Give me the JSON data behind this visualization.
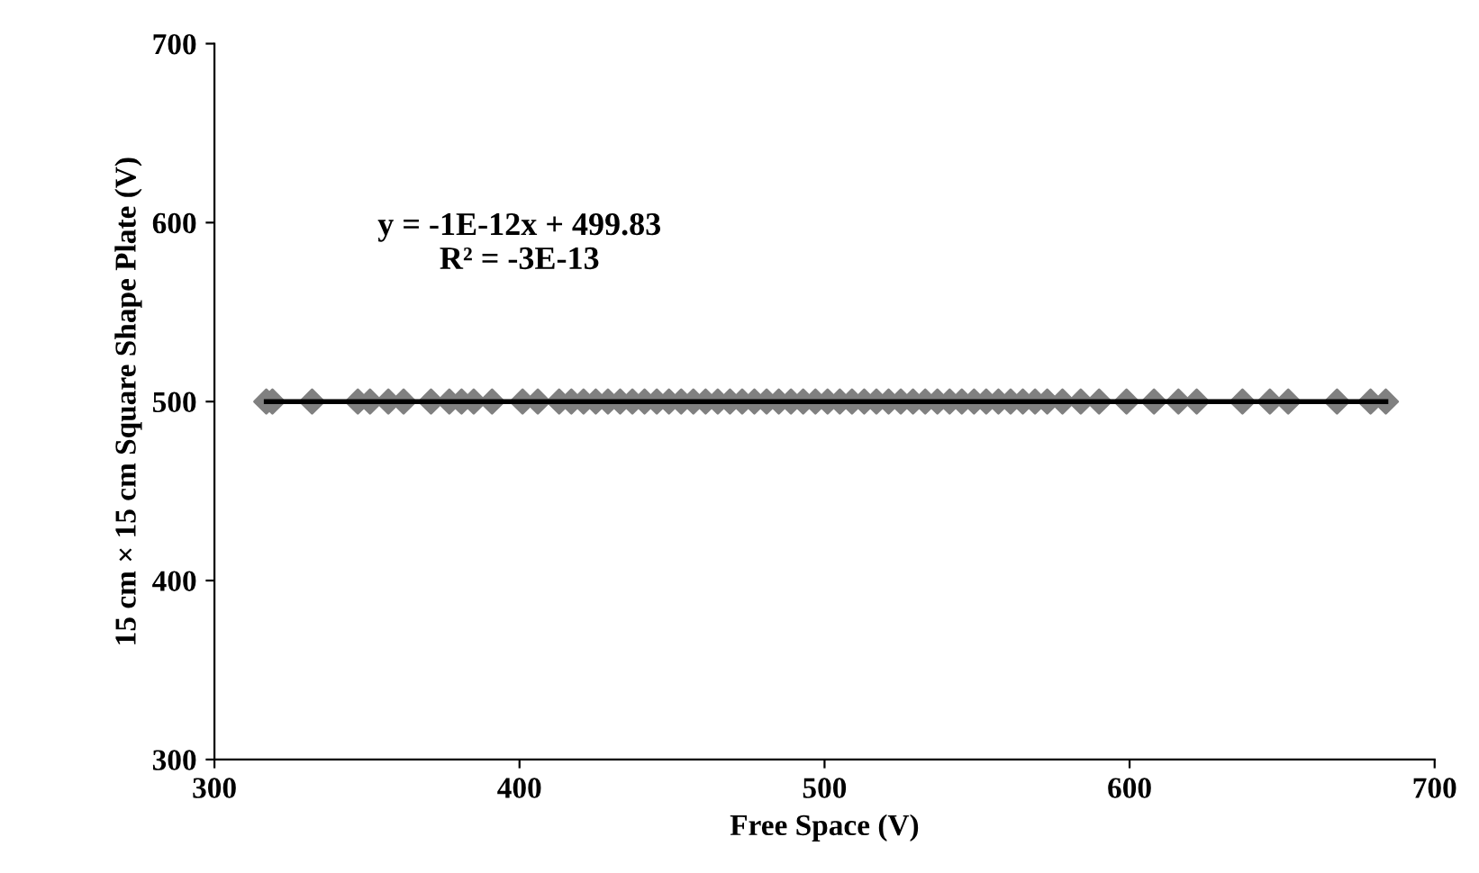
{
  "chart_data": {
    "type": "scatter",
    "xlabel": "Free Space (V)",
    "ylabel": "15 cm × 15 cm Square Shape Plate (V)",
    "xlim": [
      300,
      700
    ],
    "xticks": [
      300,
      400,
      500,
      600,
      700
    ],
    "ylim": [
      300,
      700
    ],
    "yticks": [
      300,
      400,
      500,
      600,
      700
    ],
    "grid": false,
    "annotations": [
      "y = -1E-12x + 499.83\nR² = -3E-13"
    ],
    "series": [
      {
        "marker": "diamond",
        "color": "#808080",
        "x": [
          317,
          319,
          332,
          347,
          351,
          357,
          362,
          371,
          377,
          381,
          385,
          391,
          401,
          406,
          413,
          417,
          421,
          425,
          429,
          433,
          437,
          441,
          445,
          449,
          453,
          457,
          461,
          465,
          469,
          473,
          477,
          481,
          485,
          489,
          493,
          497,
          501,
          505,
          509,
          513,
          517,
          521,
          525,
          529,
          533,
          537,
          541,
          545,
          549,
          553,
          557,
          561,
          565,
          569,
          573,
          578,
          584,
          590,
          599,
          608,
          616,
          622,
          637,
          646,
          652,
          668,
          679,
          684
        ],
        "values": [
          500,
          500,
          500,
          500,
          500,
          500,
          500,
          500,
          500,
          500,
          500,
          500,
          500,
          500,
          500,
          500,
          500,
          500,
          500,
          500,
          500,
          500,
          500,
          500,
          500,
          500,
          500,
          500,
          500,
          500,
          500,
          500,
          500,
          500,
          500,
          500,
          500,
          500,
          500,
          500,
          500,
          500,
          500,
          500,
          500,
          500,
          500,
          500,
          500,
          500,
          500,
          500,
          500,
          500,
          500,
          500,
          500,
          500,
          500,
          500,
          500,
          500,
          500,
          500,
          500,
          500,
          500,
          500
        ]
      },
      {
        "type": "line",
        "color": "#000000",
        "x": [
          317,
          684
        ],
        "values": [
          500,
          500
        ]
      }
    ]
  }
}
